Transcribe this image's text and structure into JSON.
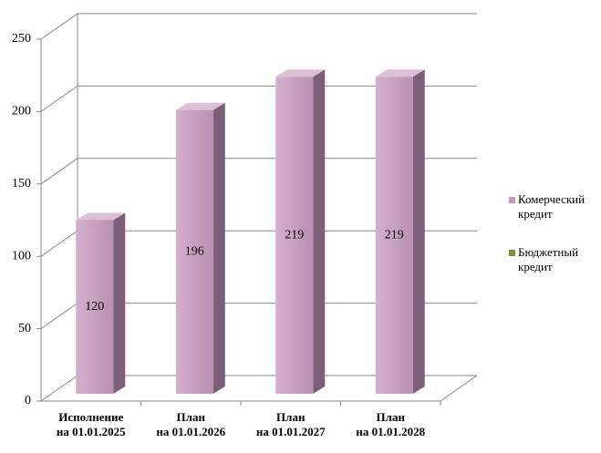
{
  "chart_data": {
    "type": "bar3d",
    "categories": [
      [
        "Исполнение",
        "на 01.01.2025"
      ],
      [
        "План",
        "на 01.01.2026"
      ],
      [
        "План",
        "на 01.01.2027"
      ],
      [
        "План",
        "на 01.01.2028"
      ]
    ],
    "series": [
      {
        "name": "Комерческий кредит",
        "color": "#c39bbd",
        "values": [
          120,
          196,
          219,
          219
        ]
      },
      {
        "name": "Бюджетный кредит",
        "color": "#77933c",
        "values": [
          null,
          null,
          null,
          null
        ]
      }
    ],
    "ylim": [
      0,
      250
    ],
    "yticks": [
      0,
      50,
      100,
      150,
      200,
      250
    ],
    "grid": true,
    "legend": "right"
  }
}
